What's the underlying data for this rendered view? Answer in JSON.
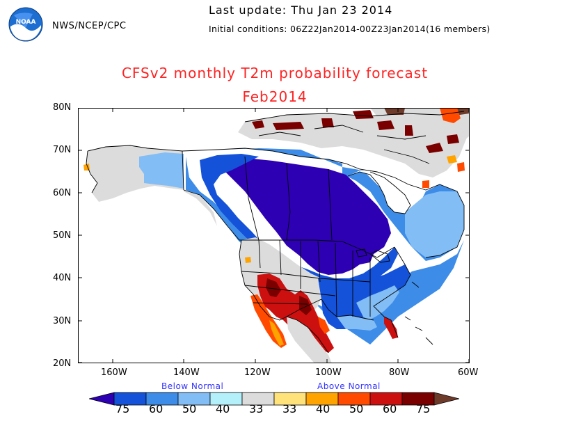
{
  "header": {
    "logo_text": "NOAA",
    "agency": "NWS/NCEP/CPC",
    "last_update": "Last update: Thu Jan 23 2014",
    "initial_conditions": "Initial conditions: 06Z22Jan2014-00Z23Jan2014(16 members)"
  },
  "title": "CFSv2 monthly T2m probability forecast",
  "subtitle": "Feb2014",
  "map": {
    "lat_labels": [
      "80N",
      "70N",
      "60N",
      "50N",
      "40N",
      "30N",
      "20N"
    ],
    "lon_labels": [
      "160W",
      "140W",
      "120W",
      "100W",
      "80W",
      "60W"
    ],
    "colors": {
      "below_75": "#2e00b3",
      "below_60": "#1452d9",
      "below_50": "#3c8ce8",
      "below_40": "#82bdf5",
      "below_33": "#b4f0fa",
      "normal": "#dcdcdc",
      "above_33": "#ffe27a",
      "above_40": "#ffa300",
      "above_50": "#ff4a00",
      "above_60": "#cc1010",
      "above_75": "#7a0000",
      "above_extreme": "#6e3a2a"
    }
  },
  "legend": {
    "below_label": "Below Normal",
    "above_label": "Above Normal",
    "values": [
      "75",
      "60",
      "50",
      "40",
      "33",
      "33",
      "40",
      "50",
      "60",
      "75"
    ],
    "colors": [
      "#1452d9",
      "#3c8ce8",
      "#82bdf5",
      "#b4f0fa",
      "#dcdcdc",
      "#ffe27a",
      "#ffa300",
      "#ff4a00",
      "#cc1010",
      "#7a0000"
    ],
    "end_left_color": "#2e00b3",
    "end_right_color": "#6e3a2a"
  }
}
